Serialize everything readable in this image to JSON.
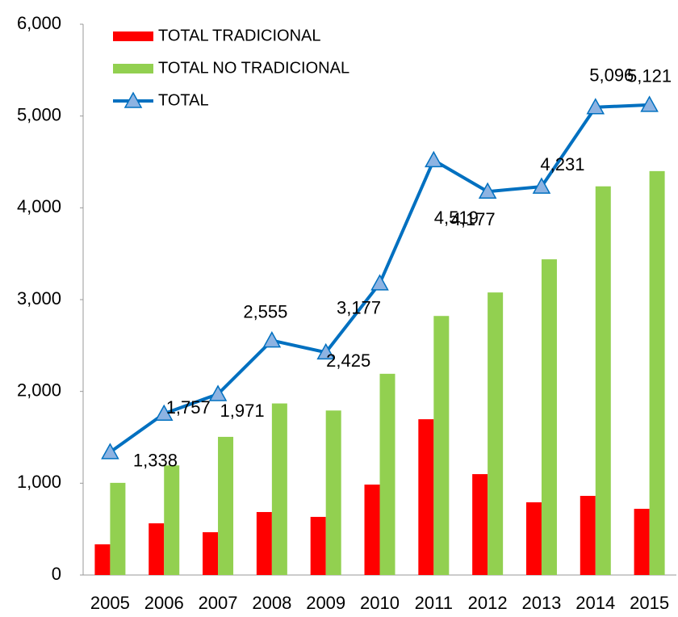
{
  "chart_data": {
    "type": "bar-line",
    "categories": [
      "2005",
      "2006",
      "2007",
      "2008",
      "2009",
      "2010",
      "2011",
      "2012",
      "2013",
      "2014",
      "2015"
    ],
    "series": [
      {
        "name": "TOTAL TRADICIONAL",
        "color": "#ff0000",
        "type": "bar",
        "values": [
          334,
          563,
          466,
          686,
          633,
          985,
          1697,
          1099,
          792,
          862,
          721
        ]
      },
      {
        "name": "TOTAL NO TRADICIONAL",
        "color": "#92d050",
        "type": "bar",
        "values": [
          1004,
          1194,
          1505,
          1869,
          1792,
          2192,
          2822,
          3078,
          3439,
          4234,
          4400
        ]
      },
      {
        "name": "TOTAL",
        "color": "#0070c0",
        "type": "line",
        "values": [
          1338,
          1757,
          1971,
          2555,
          2425,
          3177,
          4519,
          4177,
          4231,
          5096,
          5121
        ],
        "value_labels": [
          "1,338",
          "1,757",
          "1,971",
          "2,555",
          "2,425",
          "3,177",
          "4,519",
          "4,177",
          "4,231",
          "5,096",
          "5,121"
        ]
      }
    ],
    "ylim": [
      0,
      6000
    ],
    "yticks": [
      0,
      {
        "value": 1000,
        "label": "1,000"
      },
      {
        "value": 2000,
        "label": "2,000"
      },
      {
        "value": 3000,
        "label": "3,000"
      },
      {
        "value": 4000,
        "label": "4,000"
      },
      {
        "value": 5000,
        "label": "5,000"
      },
      {
        "value": 6000,
        "label": "6,000"
      }
    ],
    "legend": "top-left"
  }
}
